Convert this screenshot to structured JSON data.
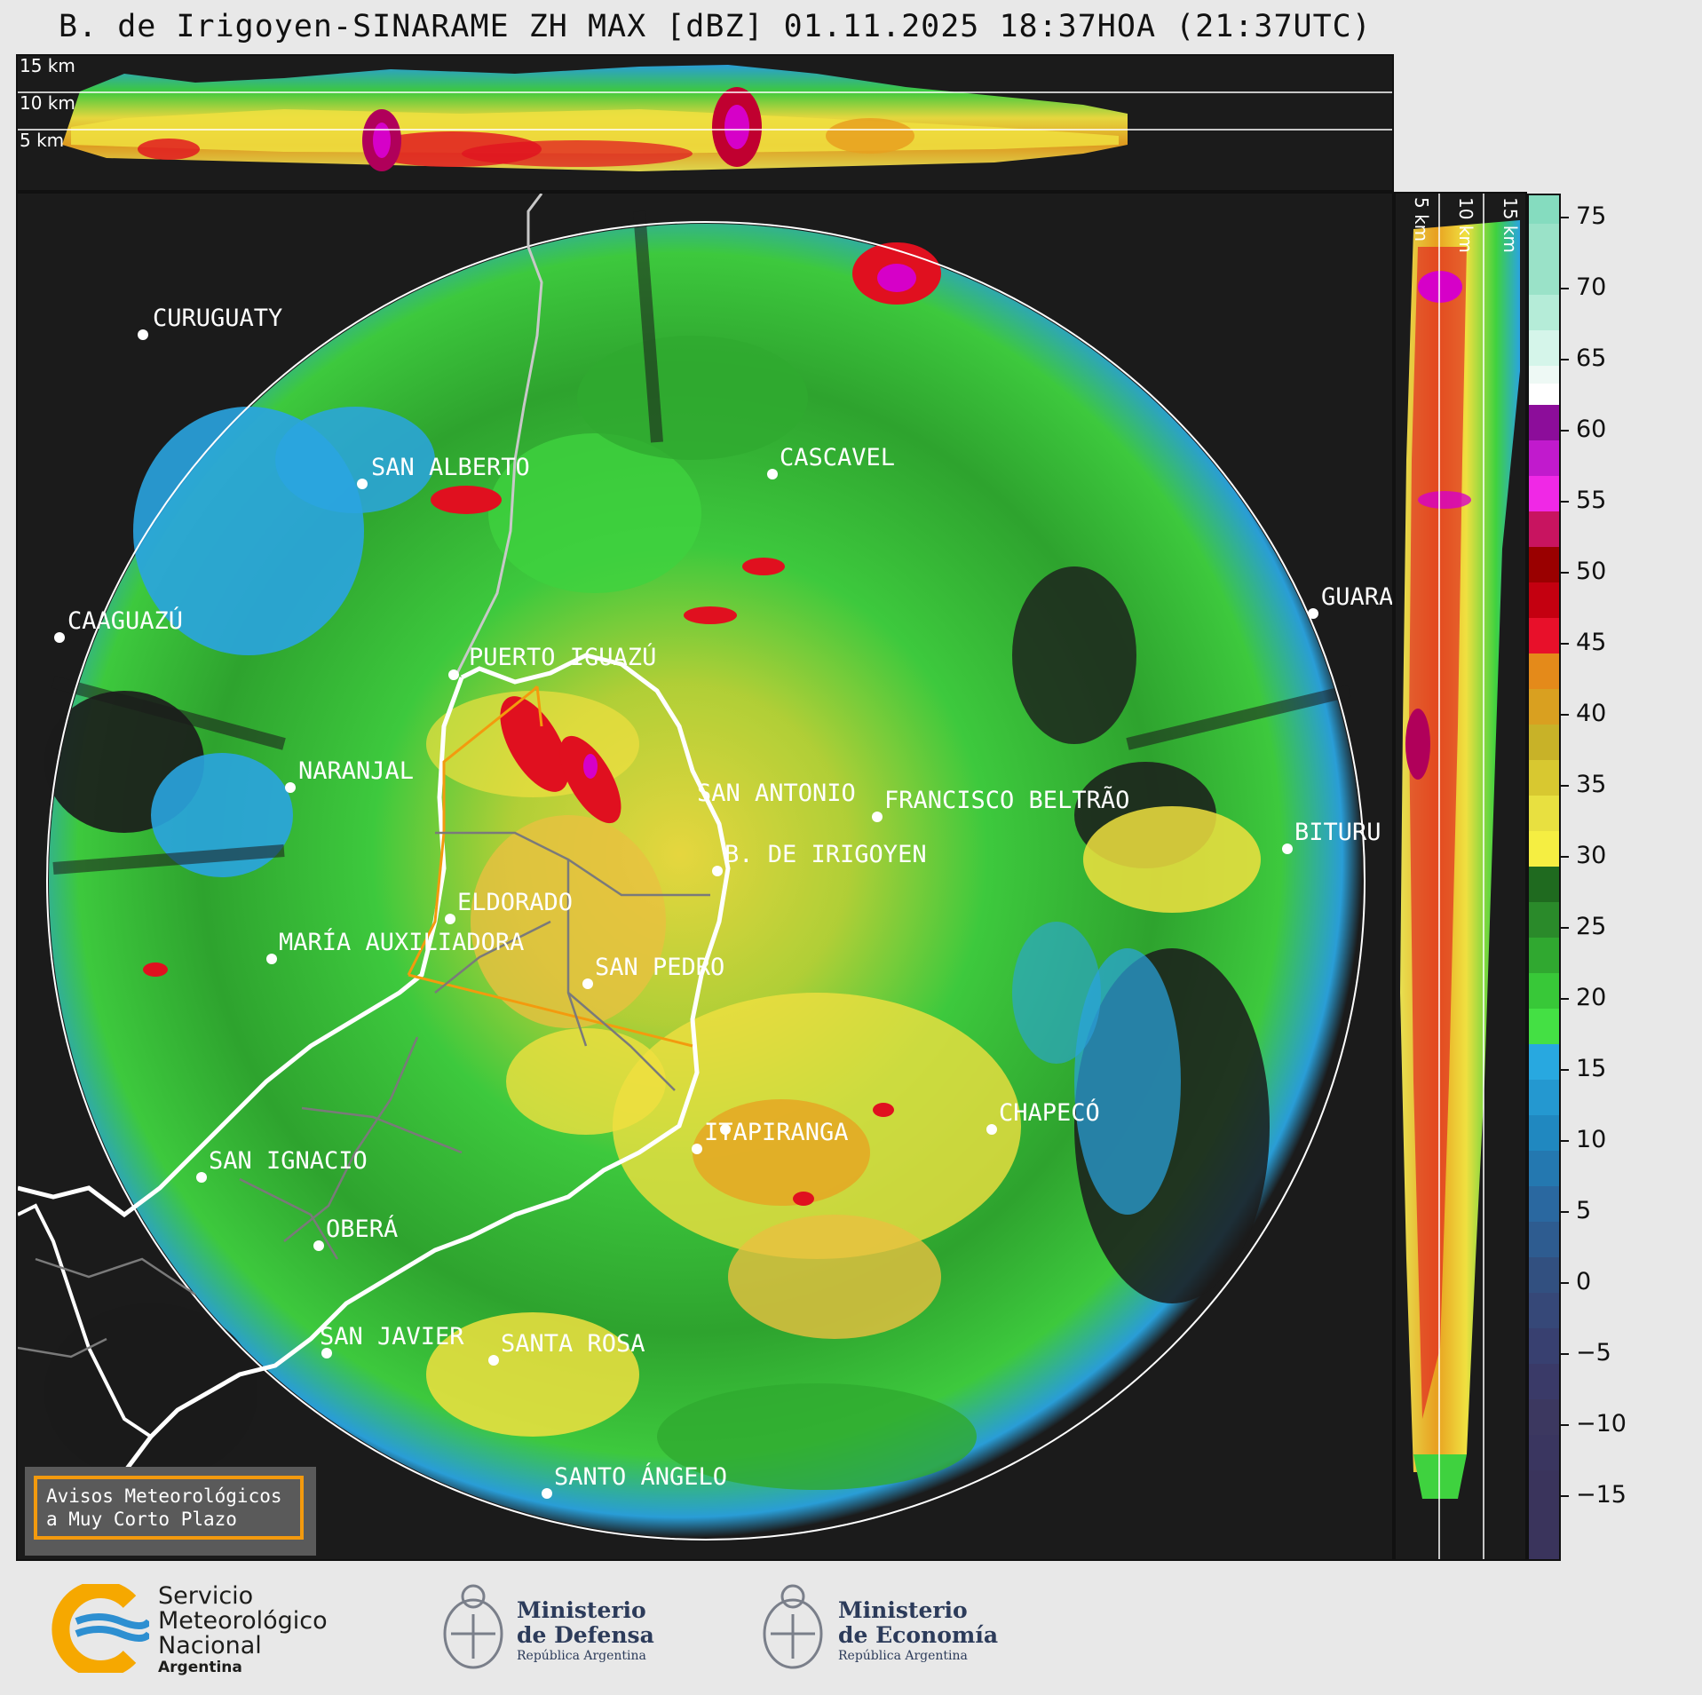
{
  "title": "B. de Irigoyen-SINARAME ZH MAX [dBZ] 01.11.2025 18:37HOA (21:37UTC)",
  "cross_section_top": {
    "height_labels": [
      "15 km",
      "10 km",
      "5 km"
    ]
  },
  "cross_section_right": {
    "height_labels": [
      "5 km",
      "10 km",
      "15 km"
    ]
  },
  "colorbar": {
    "unit": "dBZ",
    "ticks": [
      "75",
      "70",
      "65",
      "60",
      "55",
      "50",
      "45",
      "40",
      "35",
      "30",
      "25",
      "20",
      "15",
      "10",
      "5",
      "0",
      "−5",
      "−10",
      "−15"
    ]
  },
  "cities": [
    {
      "name": "CURUGUATY"
    },
    {
      "name": "SAN ALBERTO"
    },
    {
      "name": "CASCAVEL"
    },
    {
      "name": "CAAGUAZÚ"
    },
    {
      "name": "GUARA"
    },
    {
      "name": "PUERTO IGUAZÚ"
    },
    {
      "name": "NARANJAL"
    },
    {
      "name": "SAN ANTONIO"
    },
    {
      "name": "FRANCISCO BELTRÃO"
    },
    {
      "name": "BITURU"
    },
    {
      "name": "B. DE IRIGOYEN"
    },
    {
      "name": "ELDORADO"
    },
    {
      "name": "MARÍA AUXILIADORA"
    },
    {
      "name": "SAN PEDRO"
    },
    {
      "name": "ITAPIRANGA"
    },
    {
      "name": "CHAPECÓ"
    },
    {
      "name": "SAN IGNACIO"
    },
    {
      "name": "OBERÁ"
    },
    {
      "name": "SAN JAVIER"
    },
    {
      "name": "SANTA ROSA"
    },
    {
      "name": "SANTO ÁNGELO"
    }
  ],
  "warning_box": {
    "line1": "Avisos Meteorológicos",
    "line2": "a Muy Corto Plazo"
  },
  "footer": {
    "smn": {
      "line1": "Servicio",
      "line2": "Meteorológico",
      "line3": "Nacional",
      "line4": "Argentina"
    },
    "defensa": {
      "line1": "Ministerio",
      "line2": "de Defensa",
      "line3": "República Argentina"
    },
    "economia": {
      "line1": "Ministerio",
      "line2": "de Economía",
      "line3": "República Argentina"
    }
  },
  "colors": {
    "background": "#1b1b1b",
    "border_argentina": "#ffffff",
    "province_border": "#f39a0e",
    "warning_border": "#f39a0e",
    "smn_blue": "#2d8fd1",
    "smn_orange": "#f6a800"
  }
}
